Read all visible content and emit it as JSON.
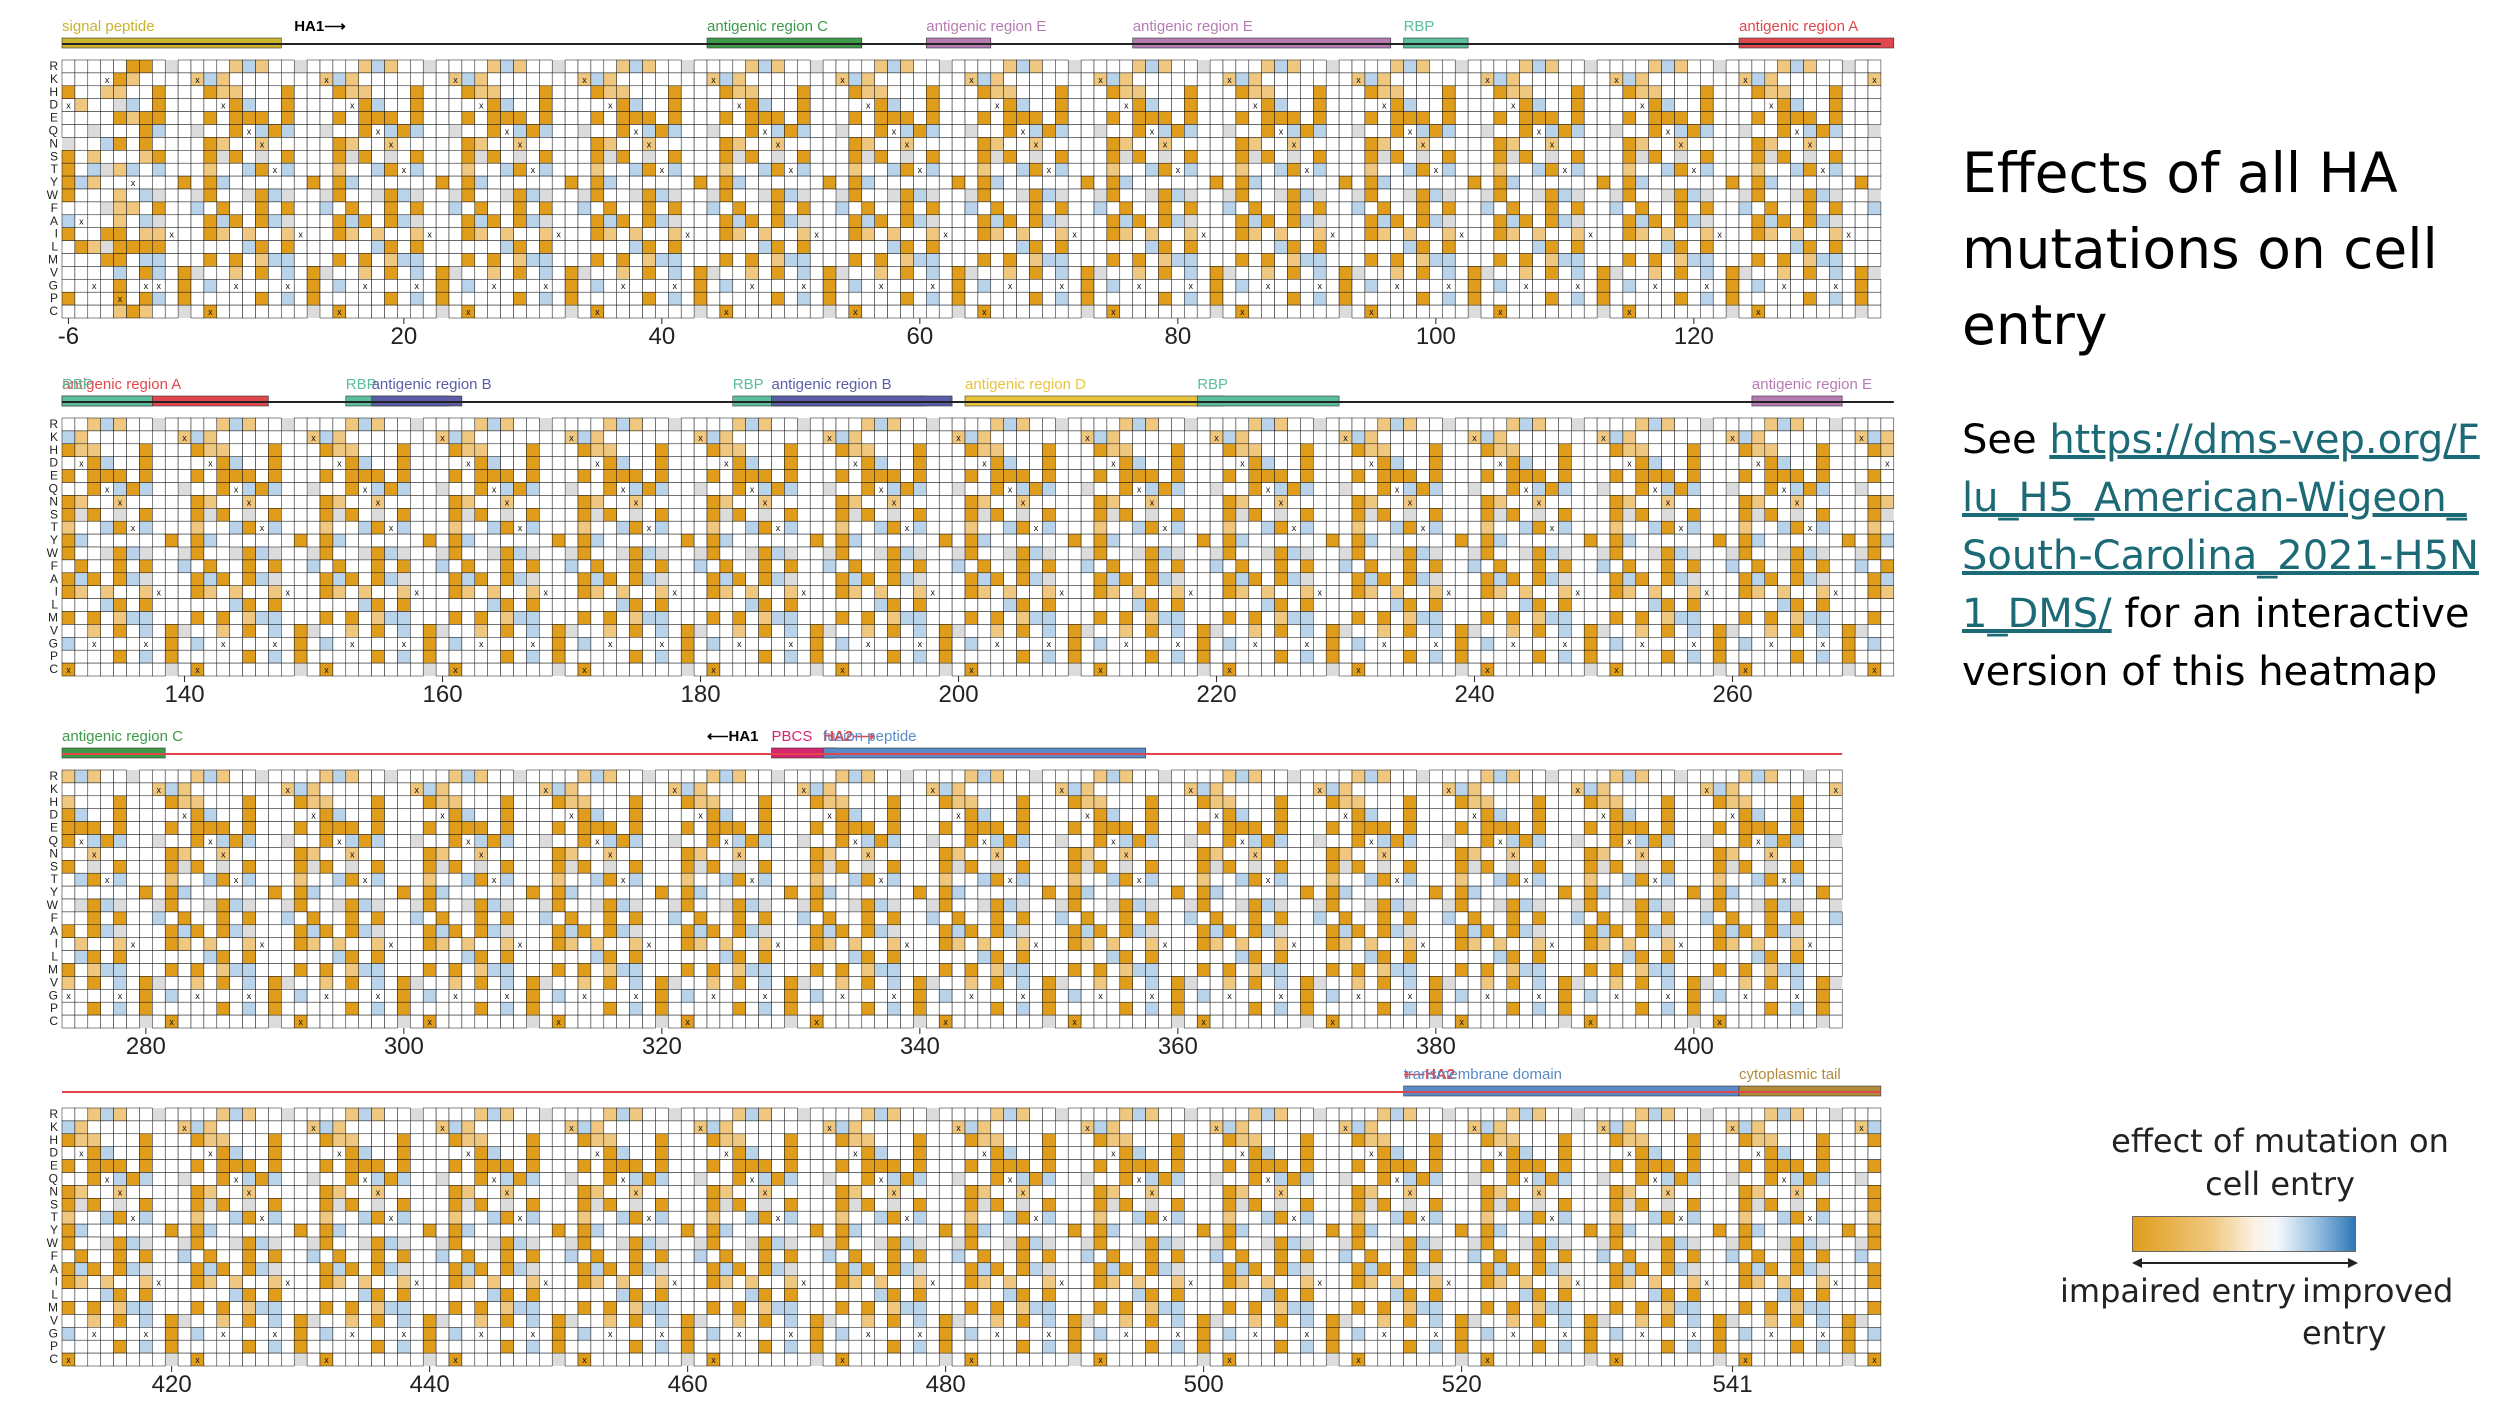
{
  "slide": {
    "title": "Effects of all HA mutations on cell entry",
    "see_prefix": "See ",
    "link_text": "https://dms-vep.org/Flu_H5_American-Wigeon_South-Carolina_2021-H5N1_DMS/",
    "see_suffix": " for an interactive version of this heatmap"
  },
  "legend": {
    "title": "effect of mutation on cell entry",
    "left_label": "impaired entry",
    "right_label": "improved entry",
    "colors": {
      "impaired": "#e09d1c",
      "neutral": "#ffffff",
      "improved": "#2f78b7"
    }
  },
  "chart_data": {
    "type": "heatmap",
    "title": "",
    "ylabel": "",
    "xlabel": "",
    "amino_acids": [
      "R",
      "K",
      "H",
      "D",
      "E",
      "Q",
      "N",
      "S",
      "T",
      "Y",
      "W",
      "F",
      "A",
      "I",
      "L",
      "M",
      "V",
      "G",
      "P",
      "C"
    ],
    "colors": {
      "impaired": "#e09d1c",
      "impaired_light": "#f0c77e",
      "neutral": "#ffffff",
      "improved_light": "#b8d3ea",
      "improved": "#2f78b7",
      "missing": "#dcdcdc",
      "wildtype_marker": "x"
    },
    "value_range": [
      -1,
      1
    ],
    "rows": [
      {
        "sites": [
          -6,
          134
        ],
        "ticks": [
          "-6",
          "20",
          "40",
          "60",
          "80",
          "100",
          "120"
        ],
        "tick_sites": [
          -6,
          20,
          40,
          60,
          80,
          100,
          120
        ],
        "annotations": [
          {
            "label": "signal peptide",
            "start": -6,
            "end": 10,
            "color": "#c9b52e"
          },
          {
            "label": "HA1⟶",
            "start": 12,
            "end": 12,
            "color": "#000000",
            "text_only": true
          },
          {
            "label": "antigenic region C",
            "start": 44,
            "end": 55,
            "color": "#3c9a48"
          },
          {
            "label": "antigenic region E",
            "start": 61,
            "end": 65,
            "color": "#b77bb4"
          },
          {
            "label": "antigenic region E",
            "start": 77,
            "end": 96,
            "color": "#b77bb4"
          },
          {
            "label": "RBP",
            "start": 98,
            "end": 102,
            "color": "#5bbf9e"
          },
          {
            "label": "antigenic region A",
            "start": 124,
            "end": 135,
            "color": "#e0474c"
          }
        ]
      },
      {
        "sites": [
          131,
          272
        ],
        "ticks": [
          "140",
          "160",
          "180",
          "200",
          "220",
          "240",
          "260"
        ],
        "tick_sites": [
          140,
          160,
          180,
          200,
          220,
          240,
          260
        ],
        "annotations": [
          {
            "label": "antigenic region A",
            "start": 131,
            "end": 146,
            "color": "#e0474c"
          },
          {
            "label": "RBP",
            "start": 131,
            "end": 137,
            "color": "#5bbf9e"
          },
          {
            "label": "RBP",
            "start": 153,
            "end": 160,
            "color": "#5bbf9e"
          },
          {
            "label": "antigenic region B",
            "start": 155,
            "end": 161,
            "color": "#5b5ea6"
          },
          {
            "label": "RBP",
            "start": 183,
            "end": 197,
            "color": "#5bbf9e"
          },
          {
            "label": "antigenic region B",
            "start": 186,
            "end": 199,
            "color": "#5b5ea6"
          },
          {
            "label": "antigenic region D",
            "start": 201,
            "end": 220,
            "color": "#e8c33a"
          },
          {
            "label": "RBP",
            "start": 219,
            "end": 229,
            "color": "#5bbf9e"
          },
          {
            "label": "antigenic region E",
            "start": 262,
            "end": 268,
            "color": "#b77bb4"
          }
        ]
      },
      {
        "sites": [
          274,
          411
        ],
        "ticks": [
          "280",
          "300",
          "320",
          "340",
          "360",
          "380",
          "400"
        ],
        "tick_sites": [
          280,
          300,
          320,
          340,
          360,
          380,
          400
        ],
        "annotations": [
          {
            "label": "antigenic region C",
            "start": 274,
            "end": 281,
            "color": "#3c9a48"
          },
          {
            "label": "⟵HA1",
            "start": 324,
            "end": 324,
            "color": "#000000",
            "text_only": true
          },
          {
            "label": "PBCS",
            "start": 329,
            "end": 333,
            "color": "#d6246e"
          },
          {
            "label": "HA2⟶",
            "start": 333,
            "end": 333,
            "color": "#e0474c",
            "text_only": true
          },
          {
            "label": "fusion peptide",
            "start": 333,
            "end": 357,
            "color": "#5b8ac6"
          }
        ]
      },
      {
        "sites": [
          412,
          552
        ],
        "ticks": [
          "420",
          "440",
          "460",
          "480",
          "500",
          "520",
          "541"
        ],
        "tick_sites": [
          420,
          440,
          460,
          480,
          500,
          520,
          541
        ],
        "annotations": [
          {
            "label": "⟵HA2",
            "start": 516,
            "end": 516,
            "color": "#e0474c",
            "text_only": true
          },
          {
            "label": "transmembrane domain",
            "start": 516,
            "end": 541,
            "color": "#5b8ac6"
          },
          {
            "label": "cytoplasmic tail",
            "start": 542,
            "end": 552,
            "color": "#b08b3a"
          }
        ]
      }
    ]
  }
}
